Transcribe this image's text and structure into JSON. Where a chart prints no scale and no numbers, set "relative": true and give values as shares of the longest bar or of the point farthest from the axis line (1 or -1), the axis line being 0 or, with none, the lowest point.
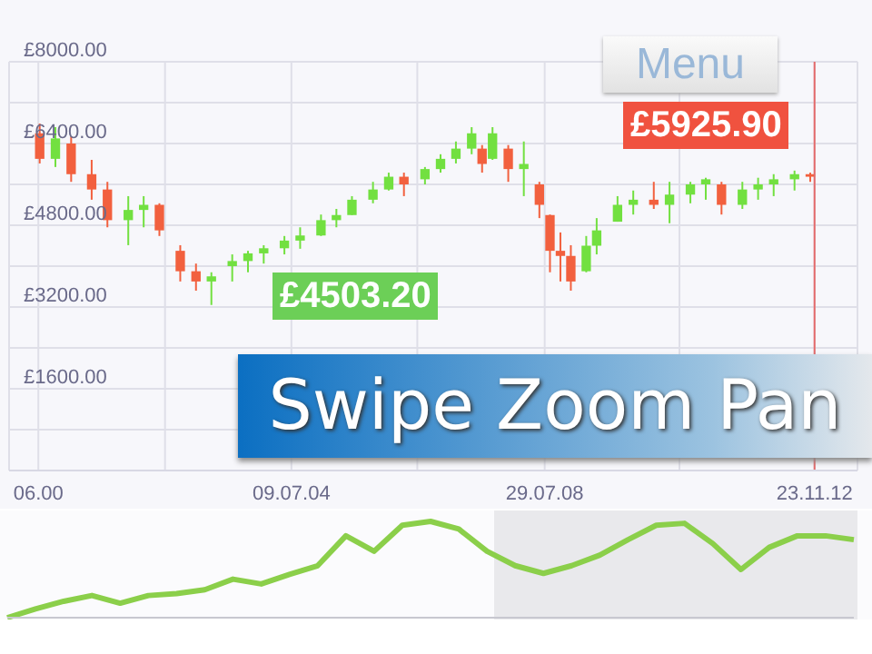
{
  "chart_data": [
    {
      "type": "candlestick",
      "x": [
        "2000-07",
        "2000-10",
        "2001-01",
        "2001-05",
        "2001-08",
        "2001-12",
        "2002-03",
        "2002-06",
        "2002-10",
        "2003-01",
        "2003-04",
        "2003-08",
        "2003-11",
        "2004-02",
        "2004-06",
        "2004-09",
        "2005-01",
        "2005-04",
        "2005-07",
        "2005-11",
        "2006-02",
        "2006-05",
        "2006-09",
        "2006-12",
        "2007-03",
        "2007-06",
        "2007-08",
        "2007-10",
        "2008-01",
        "2008-04",
        "2008-07",
        "2008-09",
        "2008-11",
        "2009-01",
        "2009-04",
        "2009-06",
        "2009-10",
        "2010-01",
        "2010-05",
        "2010-08",
        "2010-12",
        "2011-03",
        "2011-06",
        "2011-10",
        "2012-01",
        "2012-04",
        "2012-08",
        "2012-11"
      ],
      "ohlc": [
        [
          6600,
          6790,
          6010,
          6100
        ],
        [
          6100,
          6720,
          5940,
          6500
        ],
        [
          6400,
          6540,
          5650,
          5800
        ],
        [
          5800,
          6080,
          5300,
          5500
        ],
        [
          5500,
          5650,
          4760,
          4900
        ],
        [
          4900,
          5370,
          4410,
          5100
        ],
        [
          5100,
          5370,
          4760,
          5200
        ],
        [
          5200,
          5230,
          4590,
          4700
        ],
        [
          4300,
          4410,
          3700,
          3900
        ],
        [
          3900,
          4050,
          3520,
          3700
        ],
        [
          3700,
          3880,
          3240,
          3800
        ],
        [
          4000,
          4230,
          3700,
          4100
        ],
        [
          4100,
          4300,
          3880,
          4250
        ],
        [
          4250,
          4410,
          4050,
          4350
        ],
        [
          4350,
          4590,
          4230,
          4500
        ],
        [
          4500,
          4760,
          4340,
          4600
        ],
        [
          4600,
          5010,
          4590,
          4900
        ],
        [
          4900,
          5120,
          4760,
          5000
        ],
        [
          5000,
          5370,
          5000,
          5300
        ],
        [
          5300,
          5650,
          5230,
          5500
        ],
        [
          5500,
          5830,
          5480,
          5750
        ],
        [
          5750,
          5830,
          5370,
          5600
        ],
        [
          5700,
          5940,
          5600,
          5900
        ],
        [
          5900,
          6190,
          5830,
          6100
        ],
        [
          6100,
          6440,
          6010,
          6300
        ],
        [
          6300,
          6720,
          6190,
          6600
        ],
        [
          6300,
          6370,
          5830,
          6000
        ],
        [
          6100,
          6720,
          6080,
          6600
        ],
        [
          6300,
          6370,
          5650,
          5900
        ],
        [
          5900,
          6440,
          5370,
          6000
        ],
        [
          5600,
          5650,
          4940,
          5200
        ],
        [
          5000,
          5010,
          3880,
          4300
        ],
        [
          4300,
          4660,
          3700,
          4200
        ],
        [
          4200,
          4410,
          3520,
          3700
        ],
        [
          3900,
          4590,
          3880,
          4400
        ],
        [
          4400,
          4940,
          4230,
          4700
        ],
        [
          4870,
          5370,
          4870,
          5200
        ],
        [
          5200,
          5480,
          5010,
          5300
        ],
        [
          5300,
          5650,
          5120,
          5200
        ],
        [
          5200,
          5650,
          4840,
          5400
        ],
        [
          5400,
          5650,
          5230,
          5600
        ],
        [
          5600,
          5730,
          5300,
          5700
        ],
        [
          5600,
          5650,
          5010,
          5200
        ],
        [
          5200,
          5650,
          5120,
          5500
        ],
        [
          5500,
          5730,
          5300,
          5600
        ],
        [
          5600,
          5800,
          5370,
          5700
        ],
        [
          5700,
          5870,
          5480,
          5800
        ],
        [
          5800,
          5830,
          5650,
          5750
        ]
      ],
      "colors": [
        "#f2603e",
        "#72e040",
        "#f2603e",
        "#f2603e",
        "#f2603e",
        "#72e040",
        "#72e040",
        "#f2603e",
        "#f2603e",
        "#f2603e",
        "#72e040",
        "#72e040",
        "#72e040",
        "#72e040",
        "#72e040",
        "#72e040",
        "#72e040",
        "#72e040",
        "#72e040",
        "#72e040",
        "#72e040",
        "#f2603e",
        "#72e040",
        "#72e040",
        "#72e040",
        "#72e040",
        "#f2603e",
        "#72e040",
        "#f2603e",
        "#72e040",
        "#f2603e",
        "#f2603e",
        "#f2603e",
        "#f2603e",
        "#72e040",
        "#72e040",
        "#72e040",
        "#72e040",
        "#f2603e",
        "#72e040",
        "#72e040",
        "#72e040",
        "#f2603e",
        "#72e040",
        "#72e040",
        "#72e040",
        "#72e040",
        "#f2603e"
      ],
      "xlim": [
        "2000-01-01",
        "2013-08-01"
      ],
      "xticks": [
        {
          "value": "2000-06-20",
          "label": "06.00"
        },
        {
          "value": "2002-07-01",
          "label": null
        },
        {
          "value": "2004-07-09",
          "label": "09.07.04"
        },
        {
          "value": "2006-07-15",
          "label": null
        },
        {
          "value": "2008-07-29",
          "label": "29.07.08"
        },
        {
          "value": "2010-09-25",
          "label": null
        },
        {
          "value": "2012-11-23",
          "label": "23.11.12"
        }
      ],
      "ylim": [
        0,
        8000
      ],
      "yticks": [
        {
          "value": 0,
          "label": null
        },
        {
          "value": 800,
          "label": null
        },
        {
          "value": 1600,
          "label": "£1600.00"
        },
        {
          "value": 2400,
          "label": null
        },
        {
          "value": 3200,
          "label": "£3200.00"
        },
        {
          "value": 4000,
          "label": null
        },
        {
          "value": 4800,
          "label": "£4800.00"
        },
        {
          "value": 5600,
          "label": null
        },
        {
          "value": 6400,
          "label": "£6400.00"
        },
        {
          "value": 7200,
          "label": null
        },
        {
          "value": 8000,
          "label": "£8000.00"
        }
      ],
      "grid": true,
      "ref_lines": [
        {
          "axis": "x",
          "value": "2012-11-23",
          "color": "#e46a6a"
        }
      ],
      "annotations": [
        "Menu",
        "Swipe Zoom Pan",
        "£4503.20",
        "£5925.90"
      ]
    },
    {
      "type": "line",
      "relative": true,
      "categories": [
        null,
        null,
        null,
        null,
        null,
        null,
        null,
        null,
        null,
        null,
        null,
        null,
        null,
        null,
        null,
        null,
        null,
        null,
        null,
        null,
        null,
        null,
        null,
        null,
        null,
        null,
        null,
        null,
        null,
        null,
        null
      ],
      "series": [
        {
          "color": "#8bcf4a",
          "values": [
            0,
            0.09,
            0.17,
            0.23,
            0.15,
            0.23,
            0.25,
            0.29,
            0.4,
            0.35,
            0.45,
            0.54,
            0.85,
            0.69,
            0.96,
            1,
            0.92,
            0.69,
            0.54,
            0.46,
            0.54,
            0.65,
            0.81,
            0.96,
            0.98,
            0.77,
            0.5,
            0.73,
            0.85,
            0.85,
            0.81
          ]
        }
      ]
    }
  ]
}
